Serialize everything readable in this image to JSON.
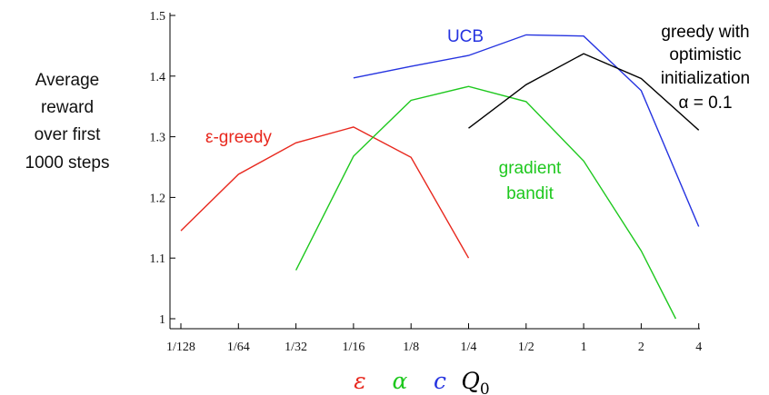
{
  "chart_data": {
    "type": "line",
    "ylabel_lines": [
      "Average",
      "reward",
      "over first",
      "1000 steps"
    ],
    "ylim": [
      1.0,
      1.5
    ],
    "y_ticks": [
      "1",
      "1.1",
      "1.2",
      "1.3",
      "1.4",
      "1.5"
    ],
    "categories": [
      "1/128",
      "1/64",
      "1/32",
      "1/16",
      "1/8",
      "1/4",
      "1/2",
      "1",
      "2",
      "4"
    ],
    "series": [
      {
        "name": "ε-greedy",
        "color": "#e8281e",
        "points": [
          [
            0,
            1.145
          ],
          [
            1,
            1.238
          ],
          [
            2,
            1.29
          ],
          [
            3,
            1.316
          ],
          [
            4,
            1.266
          ],
          [
            5,
            1.1
          ]
        ]
      },
      {
        "name": "gradient bandit",
        "color": "#1ec81e",
        "points": [
          [
            2,
            1.08
          ],
          [
            3,
            1.268
          ],
          [
            4,
            1.36
          ],
          [
            5,
            1.383
          ],
          [
            6,
            1.358
          ],
          [
            7,
            1.26
          ],
          [
            8,
            1.112
          ],
          [
            8.6,
            1.0
          ]
        ]
      },
      {
        "name": "UCB",
        "color": "#2533e0",
        "points": [
          [
            3,
            1.397
          ],
          [
            4,
            1.416
          ],
          [
            5,
            1.434
          ],
          [
            6,
            1.468
          ],
          [
            7,
            1.466
          ],
          [
            8,
            1.376
          ],
          [
            9,
            1.152
          ]
        ]
      },
      {
        "name": "greedy with optimistic initialization α = 0.1",
        "color": "#000000",
        "points": [
          [
            5,
            1.314
          ],
          [
            6,
            1.386
          ],
          [
            7,
            1.437
          ],
          [
            8,
            1.396
          ],
          [
            9,
            1.311
          ]
        ]
      }
    ],
    "series_labels": {
      "epsilon_greedy": "ε-greedy",
      "ucb": "UCB",
      "gradient_line1": "gradient",
      "gradient_line2": "bandit",
      "optimistic_line1": "greedy with",
      "optimistic_line2": "optimistic",
      "optimistic_line3": "initialization",
      "optimistic_line4": "α = 0.1"
    },
    "x_parameters": [
      {
        "symbol": "ε",
        "color": "#e8281e"
      },
      {
        "symbol": "α",
        "color": "#1ec81e"
      },
      {
        "symbol": "c",
        "color": "#2533e0"
      },
      {
        "symbol": "Q",
        "subscript": "0",
        "color": "#000000"
      }
    ],
    "grid": false
  }
}
